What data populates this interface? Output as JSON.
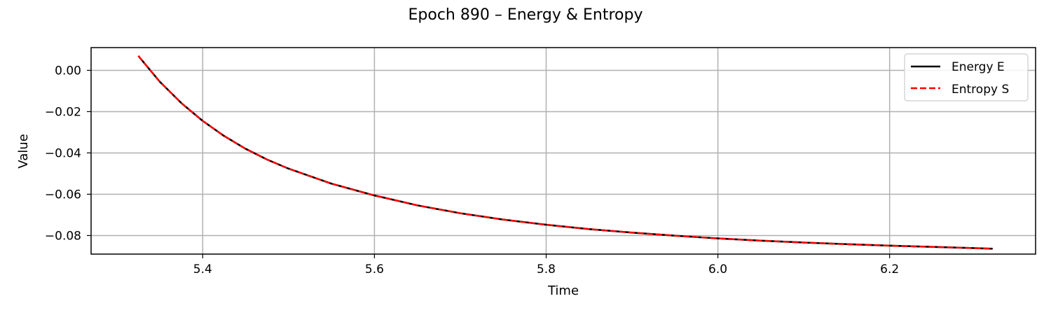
{
  "chart_data": {
    "type": "line",
    "title": "Epoch 890 – Energy & Entropy",
    "xlabel": "Time",
    "ylabel": "Value",
    "xlim": [
      5.27,
      6.37
    ],
    "ylim": [
      -0.089,
      0.011
    ],
    "xticks": [
      5.4,
      5.6,
      5.8,
      6.0,
      6.2
    ],
    "xtick_labels": [
      "5.4",
      "5.6",
      "5.8",
      "6.0",
      "6.2"
    ],
    "yticks": [
      0.0,
      -0.02,
      -0.04,
      -0.06,
      -0.08
    ],
    "ytick_labels": [
      "0.00",
      "−0.02",
      "−0.04",
      "−0.06",
      "−0.08"
    ],
    "grid": true,
    "legend_position": "top-right",
    "x": [
      5.325,
      5.35,
      5.375,
      5.4,
      5.425,
      5.45,
      5.475,
      5.5,
      5.55,
      5.6,
      5.65,
      5.7,
      5.75,
      5.8,
      5.85,
      5.9,
      5.95,
      6.0,
      6.05,
      6.1,
      6.15,
      6.2,
      6.25,
      6.32
    ],
    "series": [
      {
        "name": "Energy E",
        "color": "#000000",
        "style": "solid",
        "values": [
          0.007,
          -0.0055,
          -0.0158,
          -0.0245,
          -0.0318,
          -0.038,
          -0.0432,
          -0.0476,
          -0.0549,
          -0.0606,
          -0.0654,
          -0.0692,
          -0.0723,
          -0.0748,
          -0.0769,
          -0.0786,
          -0.0801,
          -0.0814,
          -0.0825,
          -0.0834,
          -0.0842,
          -0.0849,
          -0.0855,
          -0.0864
        ]
      },
      {
        "name": "Entropy S",
        "color": "#ff0000",
        "style": "dashed",
        "values": [
          0.007,
          -0.0055,
          -0.0158,
          -0.0245,
          -0.0318,
          -0.038,
          -0.0432,
          -0.0476,
          -0.0549,
          -0.0606,
          -0.0654,
          -0.0692,
          -0.0723,
          -0.0748,
          -0.0769,
          -0.0786,
          -0.0801,
          -0.0814,
          -0.0825,
          -0.0834,
          -0.0842,
          -0.0849,
          -0.0855,
          -0.0864
        ]
      }
    ]
  }
}
